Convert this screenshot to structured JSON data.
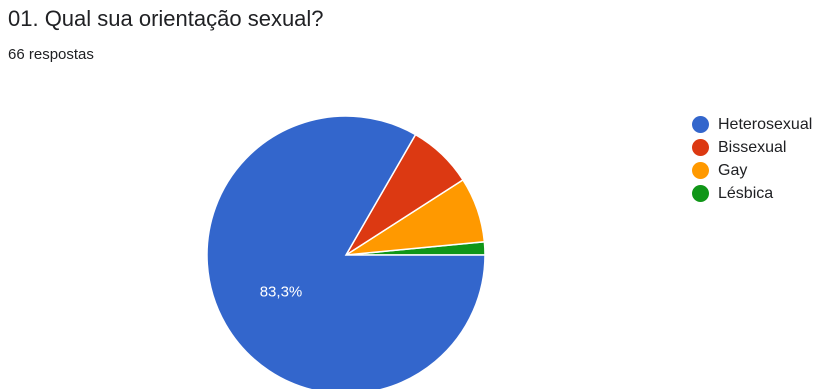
{
  "header": {
    "question": "01. Qual sua orientação sexual?",
    "responses": "66 respostas"
  },
  "chart_data": {
    "type": "pie",
    "title": "01. Qual sua orientação sexual?",
    "subtitle": "66 respostas",
    "categories": [
      "Heterosexual",
      "Bissexual",
      "Gay",
      "Lésbica"
    ],
    "values": [
      55,
      5,
      5,
      1
    ],
    "percent_labels": [
      "83,3%",
      "",
      "",
      ""
    ],
    "colors": [
      "#3366cc",
      "#dc3912",
      "#ff9900",
      "#109618"
    ],
    "legend_position": "right"
  }
}
